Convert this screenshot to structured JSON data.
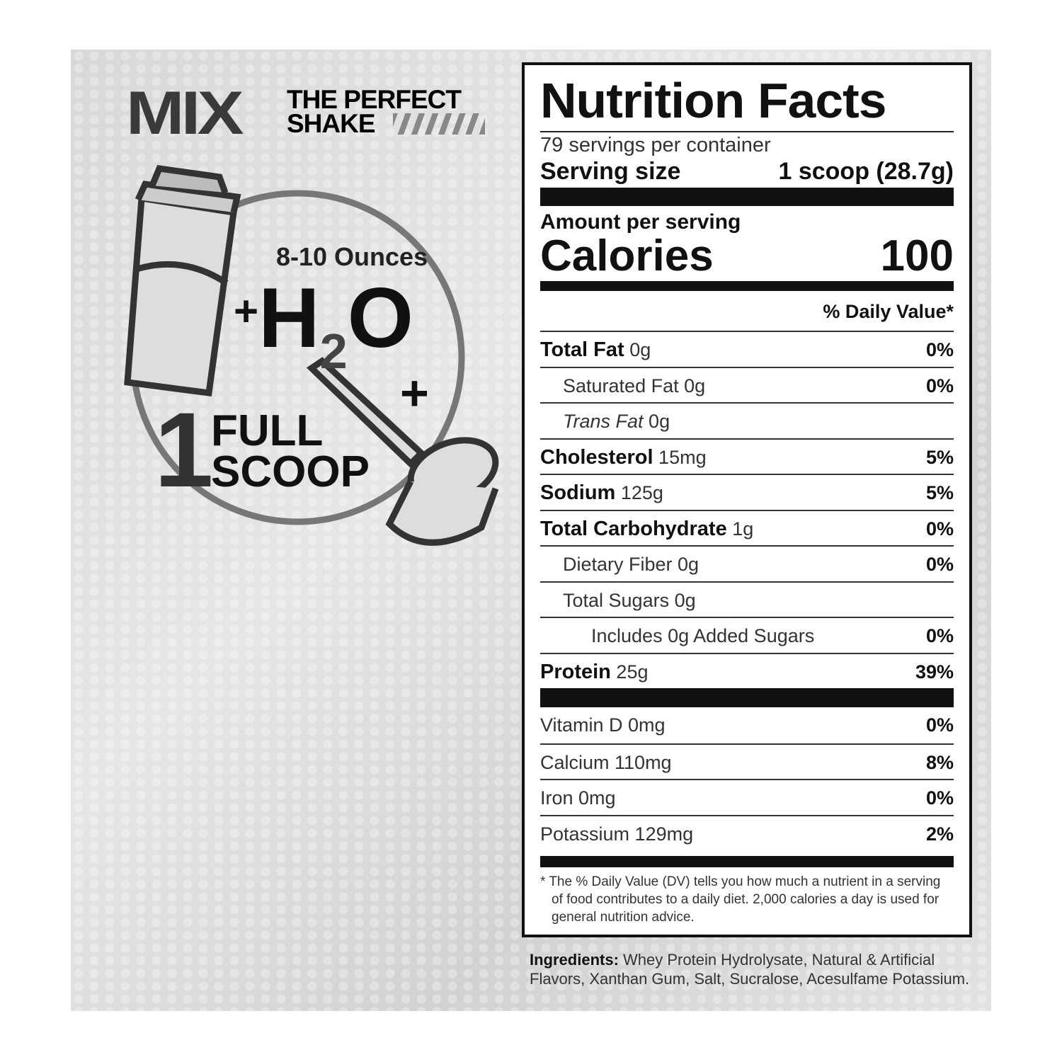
{
  "mix_panel": {
    "mix": "MIX",
    "tagline_1": "THE PERFECT",
    "tagline_2": "SHAKE",
    "ounces": "8-10 Ounces",
    "plus": "+",
    "h": "H",
    "two": "2",
    "o": "O",
    "number": "1",
    "full": "FULL",
    "scoop": "SCOOP"
  },
  "nutrition": {
    "title": "Nutrition Facts",
    "servings": "79 servings per container",
    "serving_size_label": "Serving size",
    "serving_size_value": "1 scoop (28.7g)",
    "amount_per_serving": "Amount per serving",
    "calories_label": "Calories",
    "calories_value": "100",
    "dv_header": "% Daily Value*",
    "rows": [
      {
        "name": "Total Fat",
        "amount": "0g",
        "pct": "0%",
        "bold": true,
        "indent": 0
      },
      {
        "name": "Saturated Fat 0g",
        "amount": "",
        "pct": "0%",
        "bold": false,
        "indent": 1
      },
      {
        "name": "Trans Fat",
        "amount": "0g",
        "pct": "",
        "bold": false,
        "indent": 1,
        "italic": true
      },
      {
        "name": "Cholesterol",
        "amount": "15mg",
        "pct": "5%",
        "bold": true,
        "indent": 0
      },
      {
        "name": "Sodium",
        "amount": "125g",
        "pct": "5%",
        "bold": true,
        "indent": 0
      },
      {
        "name": "Total Carbohydrate",
        "amount": "1g",
        "pct": "0%",
        "bold": true,
        "indent": 0
      },
      {
        "name": "Dietary Fiber 0g",
        "amount": "",
        "pct": "0%",
        "bold": false,
        "indent": 1
      },
      {
        "name": "Total Sugars 0g",
        "amount": "",
        "pct": "",
        "bold": false,
        "indent": 1
      },
      {
        "name": "Includes 0g Added Sugars",
        "amount": "",
        "pct": "0%",
        "bold": false,
        "indent": 2
      },
      {
        "name": "Protein",
        "amount": "25g",
        "pct": "39%",
        "bold": true,
        "indent": 0
      }
    ],
    "vitamins": [
      {
        "name": "Vitamin D 0mg",
        "pct": "0%"
      },
      {
        "name": "Calcium 110mg",
        "pct": "8%"
      },
      {
        "name": "Iron 0mg",
        "pct": "0%"
      },
      {
        "name": "Potassium 129mg",
        "pct": "2%"
      }
    ],
    "footnote": "* The % Daily Value (DV) tells you how much a nutrient in a serving of food contributes to a daily diet. 2,000 calories a day is used for general nutrition advice."
  },
  "ingredients": {
    "label": "Ingredients:",
    "text": " Whey Protein Hydrolysate, Natural & Artificial Flavors, Xanthan Gum, Salt, Sucralose, Acesulfame Potassium."
  }
}
